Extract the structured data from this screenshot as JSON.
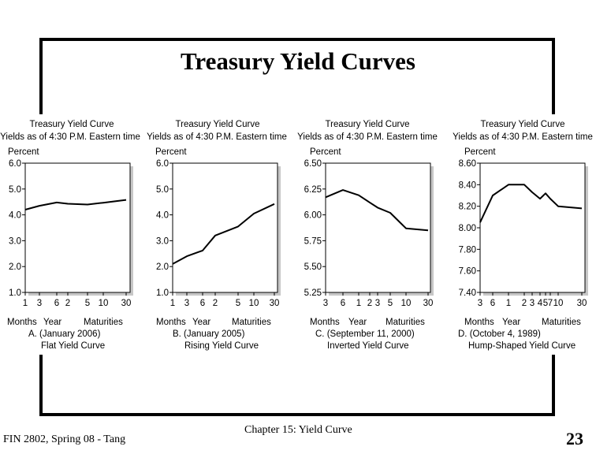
{
  "slide": {
    "title": "Treasury Yield Curves",
    "footer_left": "FIN 2802, Spring 08 - Tang",
    "footer_center": "Chapter 15: Yield Curve",
    "page_number": "23"
  },
  "chart_data": [
    {
      "type": "line",
      "title": "Treasury Yield Curve",
      "subtitle": "Yields as of 4:30 P.M. Eastern time",
      "ylabel": "Percent",
      "ylim": [
        1.0,
        6.0
      ],
      "yticks": [
        "6.0",
        "5.0",
        "4.0",
        "3.0",
        "2.0",
        "1.0"
      ],
      "xticks": [
        "1",
        "3",
        "6",
        "2",
        "5",
        "10",
        "30"
      ],
      "xaxis_group_labels": [
        "Months",
        "Year",
        "Maturities"
      ],
      "x": [
        "1",
        "3",
        "6",
        "2",
        "5",
        "10",
        "30"
      ],
      "values": [
        4.2,
        4.35,
        4.48,
        4.43,
        4.4,
        4.47,
        4.58
      ],
      "caption": "A. (January 2006)",
      "curve_name": "Flat Yield Curve"
    },
    {
      "type": "line",
      "title": "Treasury Yield Curve",
      "subtitle": "Yields as of 4:30 P.M. Eastern time",
      "ylabel": "Percent",
      "ylim": [
        1.0,
        6.0
      ],
      "yticks": [
        "6.0",
        "5.0",
        "4.0",
        "3.0",
        "2.0",
        "1.0"
      ],
      "xticks": [
        "1",
        "3",
        "6",
        "2",
        "5",
        "10",
        "30"
      ],
      "xaxis_group_labels": [
        "Months",
        "Year",
        "Maturities"
      ],
      "x": [
        "1",
        "3",
        "6",
        "2",
        "5",
        "10",
        "30"
      ],
      "values": [
        2.1,
        2.4,
        2.62,
        3.2,
        3.55,
        4.05,
        4.42
      ],
      "caption": "B. (January 2005)",
      "curve_name": "Rising Yield Curve"
    },
    {
      "type": "line",
      "title": "Treasury Yield Curve",
      "subtitle": "Yields as of 4:30 P.M. Eastern time",
      "ylabel": "Percent",
      "ylim": [
        5.25,
        6.5
      ],
      "yticks": [
        "6.50",
        "6.25",
        "6.00",
        "5.75",
        "5.50",
        "5.25"
      ],
      "xticks": [
        "3",
        "6",
        "1",
        "2",
        "3",
        "5",
        "10",
        "30"
      ],
      "xaxis_group_labels": [
        "Months",
        "Year",
        "Maturities"
      ],
      "x": [
        "3",
        "6",
        "1",
        "2",
        "3",
        "5",
        "10",
        "30"
      ],
      "values": [
        6.17,
        6.24,
        6.19,
        6.12,
        6.07,
        6.02,
        5.87,
        5.85
      ],
      "caption": "C. (September 11, 2000)",
      "curve_name": "Inverted Yield Curve"
    },
    {
      "type": "line",
      "title": "Treasury Yield Curve",
      "subtitle": "Yields as of 4:30 P.M. Eastern time",
      "ylabel": "Percent",
      "ylim": [
        7.4,
        8.6
      ],
      "yticks": [
        "8.60",
        "8.40",
        "8.20",
        "8.00",
        "7.80",
        "7.60",
        "7.40"
      ],
      "xticks": [
        "3",
        "6",
        "1",
        "2",
        "3",
        "4",
        "5",
        "7",
        "10",
        "30"
      ],
      "xaxis_group_labels": [
        "Months",
        "Year",
        "Maturities"
      ],
      "x": [
        "3",
        "6",
        "1",
        "2",
        "3",
        "4",
        "5",
        "7",
        "10",
        "30"
      ],
      "values": [
        8.05,
        8.3,
        8.4,
        8.4,
        8.33,
        8.27,
        8.32,
        8.27,
        8.2,
        8.18
      ],
      "caption": "D. (October 4, 1989)",
      "curve_name": "Hump-Shaped Yield Curve"
    }
  ]
}
